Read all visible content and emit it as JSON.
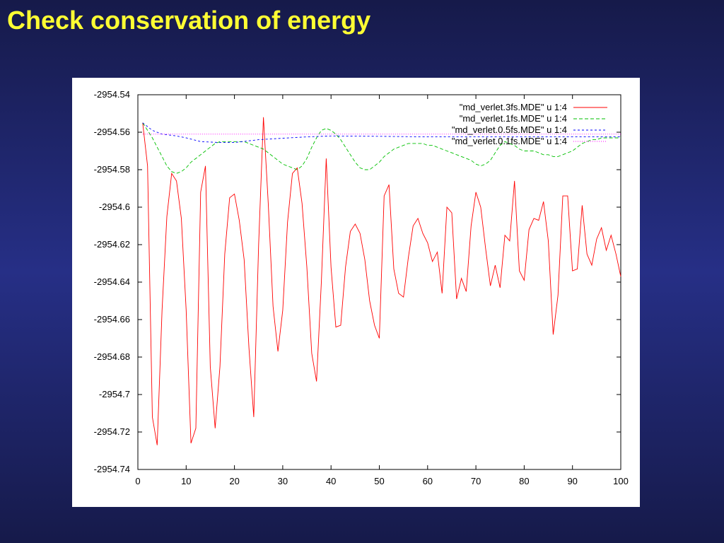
{
  "slide": {
    "title": "Check conservation of energy"
  },
  "chart_data": {
    "type": "line",
    "title": "",
    "xlabel": "",
    "ylabel": "",
    "xlim": [
      0,
      100
    ],
    "ylim": [
      -2954.74,
      -2954.54
    ],
    "x_ticks": [
      0,
      10,
      20,
      30,
      40,
      50,
      60,
      70,
      80,
      90,
      100
    ],
    "y_ticks": [
      -2954.54,
      -2954.56,
      -2954.58,
      -2954.6,
      -2954.62,
      -2954.64,
      -2954.66,
      -2954.68,
      -2954.7,
      -2954.72,
      -2954.74
    ],
    "y_tick_labels": [
      "-2954.54",
      "-2954.56",
      "-2954.58",
      "-2954.6",
      "-2954.62",
      "-2954.64",
      "-2954.66",
      "-2954.68",
      "-2954.7",
      "-2954.72",
      "-2954.74"
    ],
    "grid": false,
    "legend_position": "top-right",
    "series": [
      {
        "name": "\"md_verlet.3fs.MDE\" u 1:4",
        "color": "#ff0000",
        "dash": "solid",
        "x": [
          1,
          2,
          3,
          4,
          5,
          6,
          7,
          8,
          9,
          10,
          11,
          12,
          13,
          14,
          15,
          16,
          17,
          18,
          19,
          20,
          21,
          22,
          23,
          24,
          25,
          26,
          27,
          28,
          29,
          30,
          31,
          32,
          33,
          34,
          35,
          36,
          37,
          38,
          39,
          40,
          41,
          42,
          43,
          44,
          45,
          46,
          47,
          48,
          49,
          50,
          51,
          52,
          53,
          54,
          55,
          56,
          57,
          58,
          59,
          60,
          61,
          62,
          63,
          64,
          65,
          66,
          67,
          68,
          69,
          70,
          71,
          72,
          73,
          74,
          75,
          76,
          77,
          78,
          79,
          80,
          81,
          82,
          83,
          84,
          85,
          86,
          87,
          88,
          89,
          90,
          91,
          92,
          93,
          94,
          95,
          96,
          97,
          98,
          99,
          100
        ],
        "y": [
          -2954.555,
          -2954.578,
          -2954.712,
          -2954.727,
          -2954.655,
          -2954.605,
          -2954.582,
          -2954.586,
          -2954.606,
          -2954.655,
          -2954.726,
          -2954.718,
          -2954.592,
          -2954.578,
          -2954.685,
          -2954.718,
          -2954.685,
          -2954.625,
          -2954.595,
          -2954.593,
          -2954.607,
          -2954.628,
          -2954.675,
          -2954.712,
          -2954.62,
          -2954.552,
          -2954.598,
          -2954.653,
          -2954.677,
          -2954.655,
          -2954.608,
          -2954.582,
          -2954.579,
          -2954.598,
          -2954.632,
          -2954.678,
          -2954.693,
          -2954.64,
          -2954.574,
          -2954.632,
          -2954.664,
          -2954.663,
          -2954.632,
          -2954.613,
          -2954.609,
          -2954.614,
          -2954.628,
          -2954.65,
          -2954.663,
          -2954.67,
          -2954.594,
          -2954.588,
          -2954.633,
          -2954.646,
          -2954.648,
          -2954.627,
          -2954.61,
          -2954.606,
          -2954.614,
          -2954.619,
          -2954.629,
          -2954.624,
          -2954.646,
          -2954.6,
          -2954.603,
          -2954.649,
          -2954.638,
          -2954.645,
          -2954.61,
          -2954.592,
          -2954.6,
          -2954.622,
          -2954.642,
          -2954.631,
          -2954.643,
          -2954.615,
          -2954.618,
          -2954.586,
          -2954.634,
          -2954.639,
          -2954.612,
          -2954.606,
          -2954.607,
          -2954.597,
          -2954.618,
          -2954.668,
          -2954.647,
          -2954.594,
          -2954.594,
          -2954.634,
          -2954.633,
          -2954.599,
          -2954.625,
          -2954.631,
          -2954.617,
          -2954.611,
          -2954.623,
          -2954.615,
          -2954.625,
          -2954.637
        ]
      },
      {
        "name": "\"md_verlet.1fs.MDE\" u 1:4",
        "color": "#00c000",
        "dash": "5,3",
        "x": [
          1,
          2,
          3,
          4,
          5,
          6,
          7,
          8,
          9,
          10,
          11,
          12,
          13,
          14,
          15,
          16,
          17,
          18,
          19,
          20,
          21,
          22,
          23,
          24,
          25,
          26,
          27,
          28,
          29,
          30,
          31,
          32,
          33,
          34,
          35,
          36,
          37,
          38,
          39,
          40,
          41,
          42,
          43,
          44,
          45,
          46,
          47,
          48,
          49,
          50,
          51,
          52,
          53,
          54,
          55,
          56,
          57,
          58,
          59,
          60,
          61,
          62,
          63,
          64,
          65,
          66,
          67,
          68,
          69,
          70,
          71,
          72,
          73,
          74,
          75,
          76,
          77,
          78,
          79,
          80,
          81,
          82,
          83,
          84,
          85,
          86,
          87,
          88,
          89,
          90,
          91,
          92,
          93,
          94,
          95,
          96,
          97,
          98,
          99,
          100
        ],
        "y": [
          -2954.555,
          -2954.559,
          -2954.563,
          -2954.568,
          -2954.573,
          -2954.578,
          -2954.581,
          -2954.582,
          -2954.581,
          -2954.579,
          -2954.576,
          -2954.574,
          -2954.572,
          -2954.57,
          -2954.568,
          -2954.566,
          -2954.565,
          -2954.565,
          -2954.565,
          -2954.565,
          -2954.565,
          -2954.565,
          -2954.566,
          -2954.567,
          -2954.568,
          -2954.569,
          -2954.571,
          -2954.573,
          -2954.575,
          -2954.577,
          -2954.578,
          -2954.579,
          -2954.58,
          -2954.578,
          -2954.574,
          -2954.568,
          -2954.563,
          -2954.559,
          -2954.558,
          -2954.559,
          -2954.561,
          -2954.564,
          -2954.568,
          -2954.572,
          -2954.576,
          -2954.579,
          -2954.58,
          -2954.58,
          -2954.578,
          -2954.576,
          -2954.573,
          -2954.571,
          -2954.569,
          -2954.568,
          -2954.567,
          -2954.566,
          -2954.566,
          -2954.566,
          -2954.566,
          -2954.567,
          -2954.567,
          -2954.568,
          -2954.569,
          -2954.57,
          -2954.571,
          -2954.572,
          -2954.573,
          -2954.574,
          -2954.575,
          -2954.577,
          -2954.578,
          -2954.577,
          -2954.575,
          -2954.571,
          -2954.567,
          -2954.565,
          -2954.566,
          -2954.567,
          -2954.569,
          -2954.57,
          -2954.57,
          -2954.57,
          -2954.571,
          -2954.572,
          -2954.572,
          -2954.573,
          -2954.573,
          -2954.572,
          -2954.571,
          -2954.57,
          -2954.568,
          -2954.566,
          -2954.565,
          -2954.564,
          -2954.564,
          -2954.563,
          -2954.563,
          -2954.563,
          -2954.563,
          -2954.563
        ]
      },
      {
        "name": "\"md_verlet.0.5fs.MDE\" u 1:4",
        "color": "#0000ff",
        "dash": "3,3",
        "x": [
          1,
          3,
          5,
          8,
          10,
          13,
          17,
          20,
          25,
          30,
          35,
          40,
          50,
          60,
          70,
          80,
          90,
          100
        ],
        "y": [
          -2954.555,
          -2954.559,
          -2954.561,
          -2954.562,
          -2954.563,
          -2954.565,
          -2954.5655,
          -2954.5655,
          -2954.564,
          -2954.5632,
          -2954.5625,
          -2954.562,
          -2954.5622,
          -2954.5625,
          -2954.5625,
          -2954.5625,
          -2954.5625,
          -2954.5625
        ]
      },
      {
        "name": "\"md_verlet.0.1fs.MDE\" u 1:4",
        "color": "#ff00ff",
        "dash": "1,2",
        "x": [
          1,
          100
        ],
        "y": [
          -2954.561,
          -2954.561
        ]
      }
    ]
  }
}
